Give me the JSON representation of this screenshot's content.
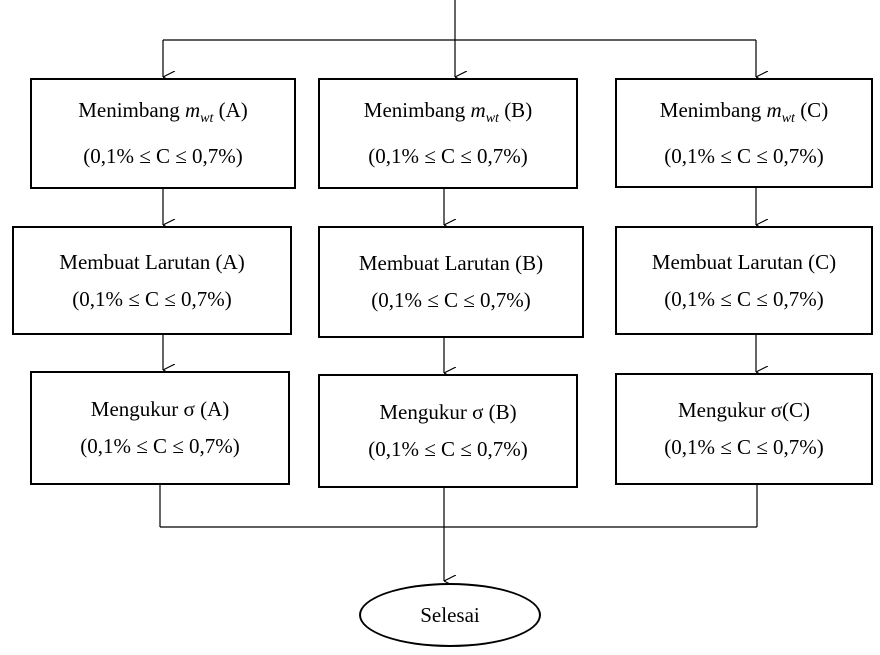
{
  "columns": [
    {
      "id": "A",
      "weigh": {
        "prefix": "Menimbang",
        "var": "m",
        "sub": "wt",
        "suffix": "(A)",
        "condition": "(0,1% ≤ C ≤ 0,7%)"
      },
      "solution": {
        "title": "Membuat Larutan (A)",
        "condition": "(0,1% ≤ C ≤ 0,7%)"
      },
      "measure": {
        "title": "Mengukur σ (A)",
        "condition": "(0,1% ≤ C ≤ 0,7%)"
      }
    },
    {
      "id": "B",
      "weigh": {
        "prefix": "Menimbang",
        "var": "m",
        "sub": "wt",
        "suffix": "(B)",
        "condition": "(0,1% ≤ C ≤ 0,7%)"
      },
      "solution": {
        "title": "Membuat Larutan (B)",
        "condition": "(0,1% ≤ C ≤ 0,7%)"
      },
      "measure": {
        "title": "Mengukur σ (B)",
        "condition": "(0,1% ≤ C ≤ 0,7%)"
      }
    },
    {
      "id": "C",
      "weigh": {
        "prefix": "Menimbang",
        "var": "m",
        "sub": "wt",
        "suffix": "(C)",
        "condition": "(0,1% ≤ C ≤ 0,7%)"
      },
      "solution": {
        "title": "Membuat Larutan (C)",
        "condition": "(0,1% ≤ C ≤ 0,7%)"
      },
      "measure": {
        "title": "Mengukur σ(C)",
        "condition": "(0,1% ≤ C ≤ 0,7%)"
      }
    }
  ],
  "end": {
    "label": "Selesai"
  }
}
